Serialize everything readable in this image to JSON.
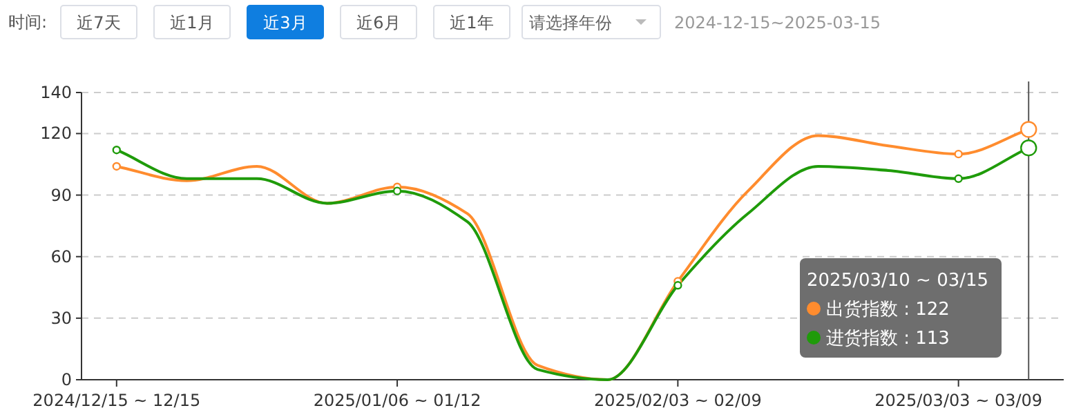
{
  "chart_data": {
    "type": "line",
    "subtitle": "2024-12-15~2025-03-15",
    "annotations": [
      "时间:",
      "近7天",
      "近1月",
      "近3月",
      "近6月",
      "近1年",
      "请选择年份",
      "2025/03/10 ~ 03/15",
      "出货指数 : 122",
      "进货指数 : 113"
    ],
    "categories": [
      "2024/12/15 ~ 12/15",
      null,
      null,
      null,
      "2025/01/06 ~ 01/12",
      null,
      null,
      null,
      "2025/02/03 ~ 02/09",
      null,
      null,
      null,
      "2025/03/03 ~ 03/09",
      null
    ],
    "series": [
      {
        "color": "#ff8c2e",
        "values": [
          104,
          97,
          104,
          86,
          94,
          81,
          7,
          0,
          48,
          92,
          119,
          114,
          110,
          122
        ]
      },
      {
        "color": "#1f9b0a",
        "values": [
          112,
          98,
          98,
          86,
          92,
          77,
          5,
          0,
          46,
          81,
          104,
          102,
          98,
          113
        ]
      }
    ],
    "ylim": [
      0,
      140
    ],
    "yticks": [
      0,
      30,
      60,
      90,
      120,
      140
    ],
    "grid": "y",
    "line_style": "solid"
  }
}
